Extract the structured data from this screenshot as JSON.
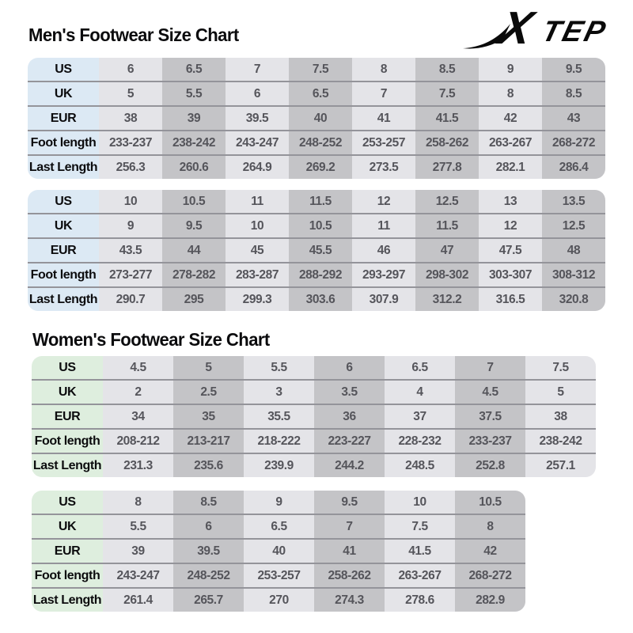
{
  "logo": {
    "brand": "XTEP"
  },
  "colors": {
    "men_header": "#dce9f4",
    "women_header": "#deeede",
    "col_light": "#e4e4e8",
    "col_dark": "#c4c4c7",
    "divider": "#94949a",
    "logo_ink": "#0a0a0a",
    "data_text": "#55555b",
    "label_text": "#0c0c0e"
  },
  "sections": [
    {
      "title": "Men's Footwear Size Chart",
      "tables": [
        {
          "rows": [
            {
              "label": "US",
              "values": [
                "6",
                "6.5",
                "7",
                "7.5",
                "8",
                "8.5",
                "9",
                "9.5"
              ]
            },
            {
              "label": "UK",
              "values": [
                "5",
                "5.5",
                "6",
                "6.5",
                "7",
                "7.5",
                "8",
                "8.5"
              ]
            },
            {
              "label": "EUR",
              "values": [
                "38",
                "39",
                "39.5",
                "40",
                "41",
                "41.5",
                "42",
                "43"
              ]
            },
            {
              "label": "Foot length",
              "values": [
                "233-237",
                "238-242",
                "243-247",
                "248-252",
                "253-257",
                "258-262",
                "263-267",
                "268-272"
              ]
            },
            {
              "label": "Last Length",
              "values": [
                "256.3",
                "260.6",
                "264.9",
                "269.2",
                "273.5",
                "277.8",
                "282.1",
                "286.4"
              ]
            }
          ]
        },
        {
          "rows": [
            {
              "label": "US",
              "values": [
                "10",
                "10.5",
                "11",
                "11.5",
                "12",
                "12.5",
                "13",
                "13.5"
              ]
            },
            {
              "label": "UK",
              "values": [
                "9",
                "9.5",
                "10",
                "10.5",
                "11",
                "11.5",
                "12",
                "12.5"
              ]
            },
            {
              "label": "EUR",
              "values": [
                "43.5",
                "44",
                "45",
                "45.5",
                "46",
                "47",
                "47.5",
                "48"
              ]
            },
            {
              "label": "Foot length",
              "values": [
                "273-277",
                "278-282",
                "283-287",
                "288-292",
                "293-297",
                "298-302",
                "303-307",
                "308-312"
              ]
            },
            {
              "label": "Last Length",
              "values": [
                "290.7",
                "295",
                "299.3",
                "303.6",
                "307.9",
                "312.2",
                "316.5",
                "320.8"
              ]
            }
          ]
        }
      ]
    },
    {
      "title": "Women's Footwear Size Chart",
      "tables": [
        {
          "rows": [
            {
              "label": "US",
              "values": [
                "4.5",
                "5",
                "5.5",
                "6",
                "6.5",
                "7",
                "7.5"
              ]
            },
            {
              "label": "UK",
              "values": [
                "2",
                "2.5",
                "3",
                "3.5",
                "4",
                "4.5",
                "5"
              ]
            },
            {
              "label": "EUR",
              "values": [
                "34",
                "35",
                "35.5",
                "36",
                "37",
                "37.5",
                "38"
              ]
            },
            {
              "label": "Foot length",
              "values": [
                "208-212",
                "213-217",
                "218-222",
                "223-227",
                "228-232",
                "233-237",
                "238-242"
              ]
            },
            {
              "label": "Last Length",
              "values": [
                "231.3",
                "235.6",
                "239.9",
                "244.2",
                "248.5",
                "252.8",
                "257.1"
              ]
            }
          ]
        },
        {
          "rows": [
            {
              "label": "US",
              "values": [
                "8",
                "8.5",
                "9",
                "9.5",
                "10",
                "10.5"
              ]
            },
            {
              "label": "UK",
              "values": [
                "5.5",
                "6",
                "6.5",
                "7",
                "7.5",
                "8"
              ]
            },
            {
              "label": "EUR",
              "values": [
                "39",
                "39.5",
                "40",
                "41",
                "41.5",
                "42"
              ]
            },
            {
              "label": "Foot length",
              "values": [
                "243-247",
                "248-252",
                "253-257",
                "258-262",
                "263-267",
                "268-272"
              ]
            },
            {
              "label": "Last Length",
              "values": [
                "261.4",
                "265.7",
                "270",
                "274.3",
                "278.6",
                "282.9"
              ]
            }
          ]
        }
      ]
    }
  ]
}
